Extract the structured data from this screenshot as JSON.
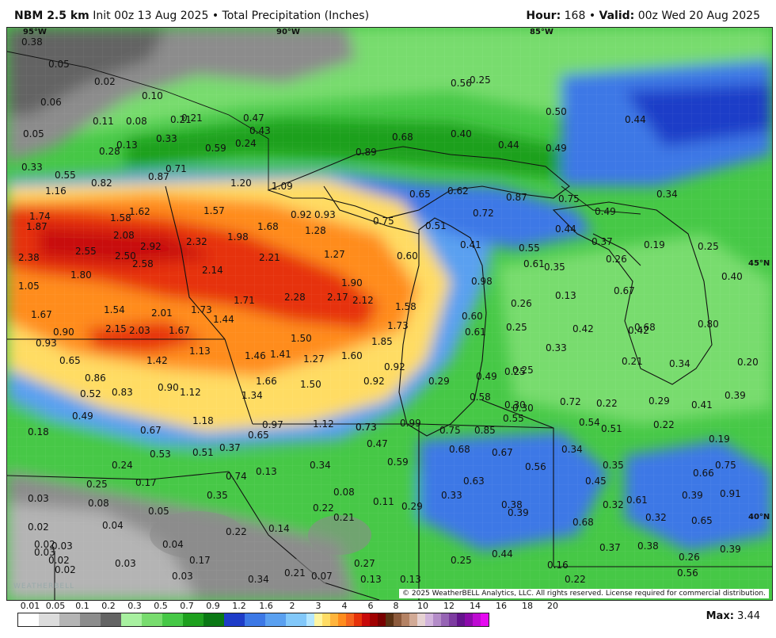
{
  "header": {
    "model": "NBM 2.5 km",
    "init": "Init 00z 13 Aug 2025",
    "bullet": "•",
    "product": "Total Precipitation (Inches)",
    "hour_label": "Hour:",
    "hour_value": "168",
    "valid_label": "Valid:",
    "valid_value": "00z Wed 20 Aug 2025"
  },
  "map": {
    "longitude_labels": [
      "95°W",
      "90°W",
      "85°W"
    ],
    "latitude_labels": [
      "45°N",
      "40°N"
    ],
    "copyright": "© 2025 WeatherBELL Analytics, LLC. All rights reserved. License required for commercial distribution.",
    "watermark": "WEATHERBELL",
    "point_values": [
      "0.38",
      "0.05",
      "0.02",
      "0.10",
      "0.06",
      "0.11",
      "0.05",
      "0.13",
      "0.21",
      "0.24",
      "0.56",
      "0.25",
      "0.08",
      "0.21",
      "0.47",
      "0.43",
      "0.33",
      "0.50",
      "0.44",
      "0.40",
      "0.44",
      "0.49",
      "0.33",
      "0.28",
      "0.59",
      "0.55",
      "0.87",
      "0.71",
      "0.68",
      "0.89",
      "1.16",
      "0.82",
      "1.20",
      "1.09",
      "0.65",
      "0.62",
      "0.87",
      "0.75",
      "0.34",
      "1.74",
      "1.87",
      "1.58",
      "1.62",
      "1.57",
      "0.92",
      "0.93",
      "0.75",
      "0.72",
      "0.49",
      "0.44",
      "0.37",
      "0.19",
      "0.25",
      "2.38",
      "2.55",
      "2.08",
      "2.92",
      "2.32",
      "1.98",
      "1.68",
      "1.28",
      "0.51",
      "0.41",
      "0.55",
      "0.61",
      "0.26",
      "0.40",
      "2.50",
      "2.58",
      "2.14",
      "2.21",
      "1.27",
      "0.60",
      "0.98",
      "0.35",
      "1.05",
      "1.80",
      "1.90",
      "2.28",
      "2.17",
      "2.12",
      "0.13",
      "0.67",
      "1.67",
      "1.54",
      "2.01",
      "1.73",
      "1.71",
      "1.58",
      "0.60",
      "0.26",
      "0.42",
      "0.68",
      "0.80",
      "0.90",
      "2.15",
      "2.03",
      "1.67",
      "1.44",
      "1.73",
      "1.85",
      "0.61",
      "0.25",
      "0.33",
      "0.93",
      "1.13",
      "1.50",
      "0.42",
      "0.25",
      "0.65",
      "1.42",
      "1.46",
      "1.41",
      "1.27",
      "1.60",
      "0.92",
      "0.21",
      "0.34",
      "0.20",
      "0.86",
      "1.66",
      "1.50",
      "0.92",
      "0.29",
      "0.49",
      "0.25",
      "0.52",
      "0.83",
      "0.90",
      "1.12",
      "1.34",
      "0.73",
      "0.58",
      "0.30",
      "0.72",
      "0.22",
      "0.29",
      "0.41",
      "0.39",
      "0.49",
      "0.30",
      "1.18",
      "0.97",
      "1.12",
      "0.73",
      "0.99",
      "0.55",
      "0.54",
      "0.22",
      "0.18",
      "0.67",
      "0.65",
      "0.75",
      "0.85",
      "0.51",
      "0.19",
      "0.47",
      "0.68",
      "0.67",
      "0.34",
      "0.53",
      "0.51",
      "0.37",
      "0.34",
      "0.59",
      "0.56",
      "0.35",
      "0.75",
      "0.24",
      "0.13",
      "0.63",
      "0.45",
      "0.66",
      "0.25",
      "0.17",
      "0.74",
      "0.35",
      "0.08",
      "0.33",
      "0.91",
      "0.03",
      "0.08",
      "0.05",
      "0.22",
      "0.11",
      "0.29",
      "0.38",
      "0.39",
      "0.32",
      "0.61",
      "0.21",
      "0.39",
      "0.02",
      "0.04",
      "0.02",
      "0.03",
      "0.14",
      "0.68",
      "0.32",
      "0.65",
      "0.03",
      "0.04",
      "0.22",
      "0.37",
      "0.38",
      "0.02",
      "0.03",
      "0.17",
      "0.27",
      "0.25",
      "0.44",
      "0.26",
      "0.39",
      "0.02",
      "0.03",
      "0.21",
      "0.07",
      "0.16",
      "0.56",
      "0.34",
      "0.13",
      "0.13",
      "0.22"
    ]
  },
  "legend": {
    "ticks": [
      "0.01",
      "0.05",
      "0.1",
      "0.2",
      "0.3",
      "0.5",
      "0.7",
      "0.9",
      "1.2",
      "1.6",
      "2",
      "3",
      "4",
      "6",
      "8",
      "10",
      "12",
      "14",
      "16",
      "18",
      "20"
    ],
    "colors": [
      "#ffffff",
      "#dcdcdc",
      "#b4b4b4",
      "#8c8c8c",
      "#646464",
      "#a8f0a0",
      "#78dc6e",
      "#46c846",
      "#1ea01e",
      "#0a7814",
      "#1e3cc8",
      "#3c78e6",
      "#5aa0f0",
      "#82c8fa",
      "#b4e6ff",
      "#fff5a0",
      "#ffdc64",
      "#ffb43c",
      "#ff8c1e",
      "#f5641e",
      "#e6320a",
      "#c80a0a",
      "#a00000",
      "#780000",
      "#5a3214",
      "#8c5a3c",
      "#b48264",
      "#d2aa96",
      "#e6d2d2",
      "#d2b4dc",
      "#b48cc8",
      "#9664b4",
      "#7d3ca0",
      "#64148c",
      "#8c0aaa",
      "#be0ad2",
      "#e60af0"
    ],
    "max_label": "Max:",
    "max_value": "3.44"
  }
}
